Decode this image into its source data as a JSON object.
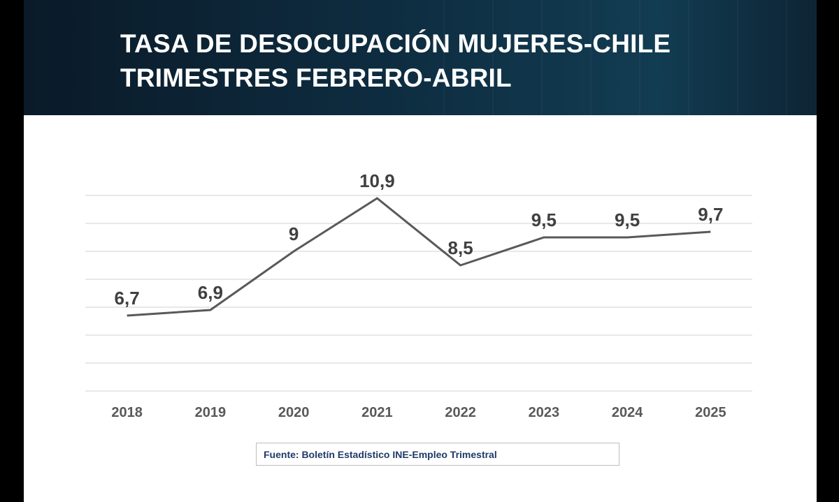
{
  "title": {
    "line1": "TASA DE DESOCUPACIÓN MUJERES-CHILE",
    "line2": "TRIMESTRES FEBRERO-ABRIL"
  },
  "source": "Fuente: Boletín Estadístico INE-Empleo Trimestral",
  "chart_data": {
    "type": "line",
    "categories": [
      "2018",
      "2019",
      "2020",
      "2021",
      "2022",
      "2023",
      "2024",
      "2025"
    ],
    "series": [
      {
        "values": [
          6.7,
          6.9,
          9,
          10.9,
          8.5,
          9.5,
          9.5,
          9.7
        ],
        "labels": [
          "6,7",
          "6,9",
          "9",
          "10,9",
          "8,5",
          "9,5",
          "9,5",
          "9,7"
        ]
      }
    ],
    "ylim": [
      4,
      11.5
    ],
    "gridlines": [
      4,
      5,
      6,
      7,
      8,
      9,
      10,
      11
    ],
    "grid": true,
    "legend": "none",
    "colors": {
      "line": "#595959",
      "grid": "#d9d9d9",
      "labels": "#404040",
      "ticks": "#595959"
    }
  }
}
